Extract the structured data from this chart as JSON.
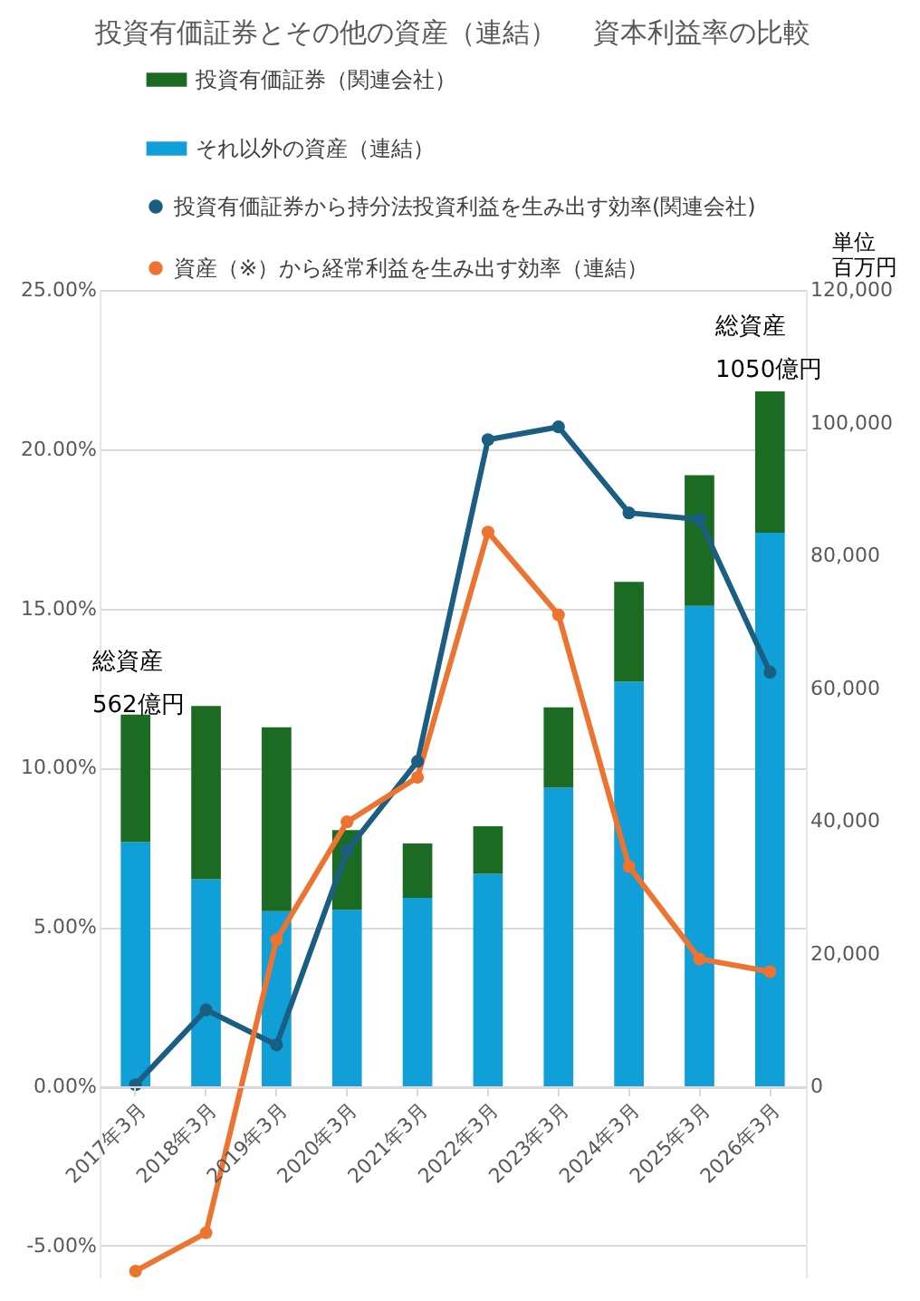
{
  "chart_data": {
    "type": "bar",
    "title": "投資有価証券とその他の資産（連結）　 資本利益率の比較",
    "y2label": "単位百万円",
    "categories": [
      "2017年3月",
      "2018年3月",
      "2019年3月",
      "2020年3月",
      "2021年3月",
      "2022年3月",
      "2023年3月",
      "2024年3月",
      "2025年3月",
      "2026年3月"
    ],
    "stacked": true,
    "series": [
      {
        "name": "それ以外の資産（連結）",
        "color": "#109fd6",
        "axis": "y2",
        "values": [
          36800,
          31200,
          26400,
          26600,
          28400,
          32000,
          45000,
          61000,
          72400,
          83400
        ]
      },
      {
        "name": "投資有価証券（関連会社）",
        "color": "#1b6b23",
        "axis": "y2",
        "values": [
          19200,
          26100,
          27700,
          12000,
          8200,
          7200,
          12100,
          15000,
          19700,
          21300
        ]
      },
      {
        "name": "投資有価証券から持分法投資利益を生み出す効率(関連会社)",
        "type": "line",
        "color": "#1a5e82",
        "values": [
          0.05,
          2.4,
          1.3,
          7.4,
          10.2,
          20.3,
          20.7,
          18.0,
          17.8,
          13.0
        ]
      },
      {
        "name": "資産（※）から経常利益を生み出す効率（連結）",
        "type": "line",
        "color": "#ed7430",
        "values": [
          -5.8,
          -4.6,
          4.6,
          8.3,
          9.7,
          17.4,
          14.8,
          6.9,
          4.0,
          3.6
        ]
      }
    ],
    "ylim": [
      -6,
      25
    ],
    "yticks": [
      {
        "value": -5,
        "label": "-5.00%"
      },
      {
        "value": 0,
        "label": "0.00%"
      },
      {
        "value": 5,
        "label": "5.00%"
      },
      {
        "value": 10,
        "label": "10.00%"
      },
      {
        "value": 15,
        "label": "15.00%"
      },
      {
        "value": 20,
        "label": "20.00%"
      },
      {
        "value": 25,
        "label": "25.00%"
      }
    ],
    "y2lim": [
      -28800,
      120000
    ],
    "y2ticks": [
      {
        "value": 0,
        "label": "0"
      },
      {
        "value": 20000,
        "label": "20,000"
      },
      {
        "value": 40000,
        "label": "40,000"
      },
      {
        "value": 60000,
        "label": "60,000"
      },
      {
        "value": 80000,
        "label": "80,000"
      },
      {
        "value": 100000,
        "label": "100,000"
      },
      {
        "value": 120000,
        "label": "120,000"
      }
    ],
    "annotations": [
      "総資産",
      "562億円",
      "総資産",
      "1050億円"
    ],
    "grid": "y",
    "legend": "top",
    "marker": "circle",
    "line_style": "solid"
  }
}
